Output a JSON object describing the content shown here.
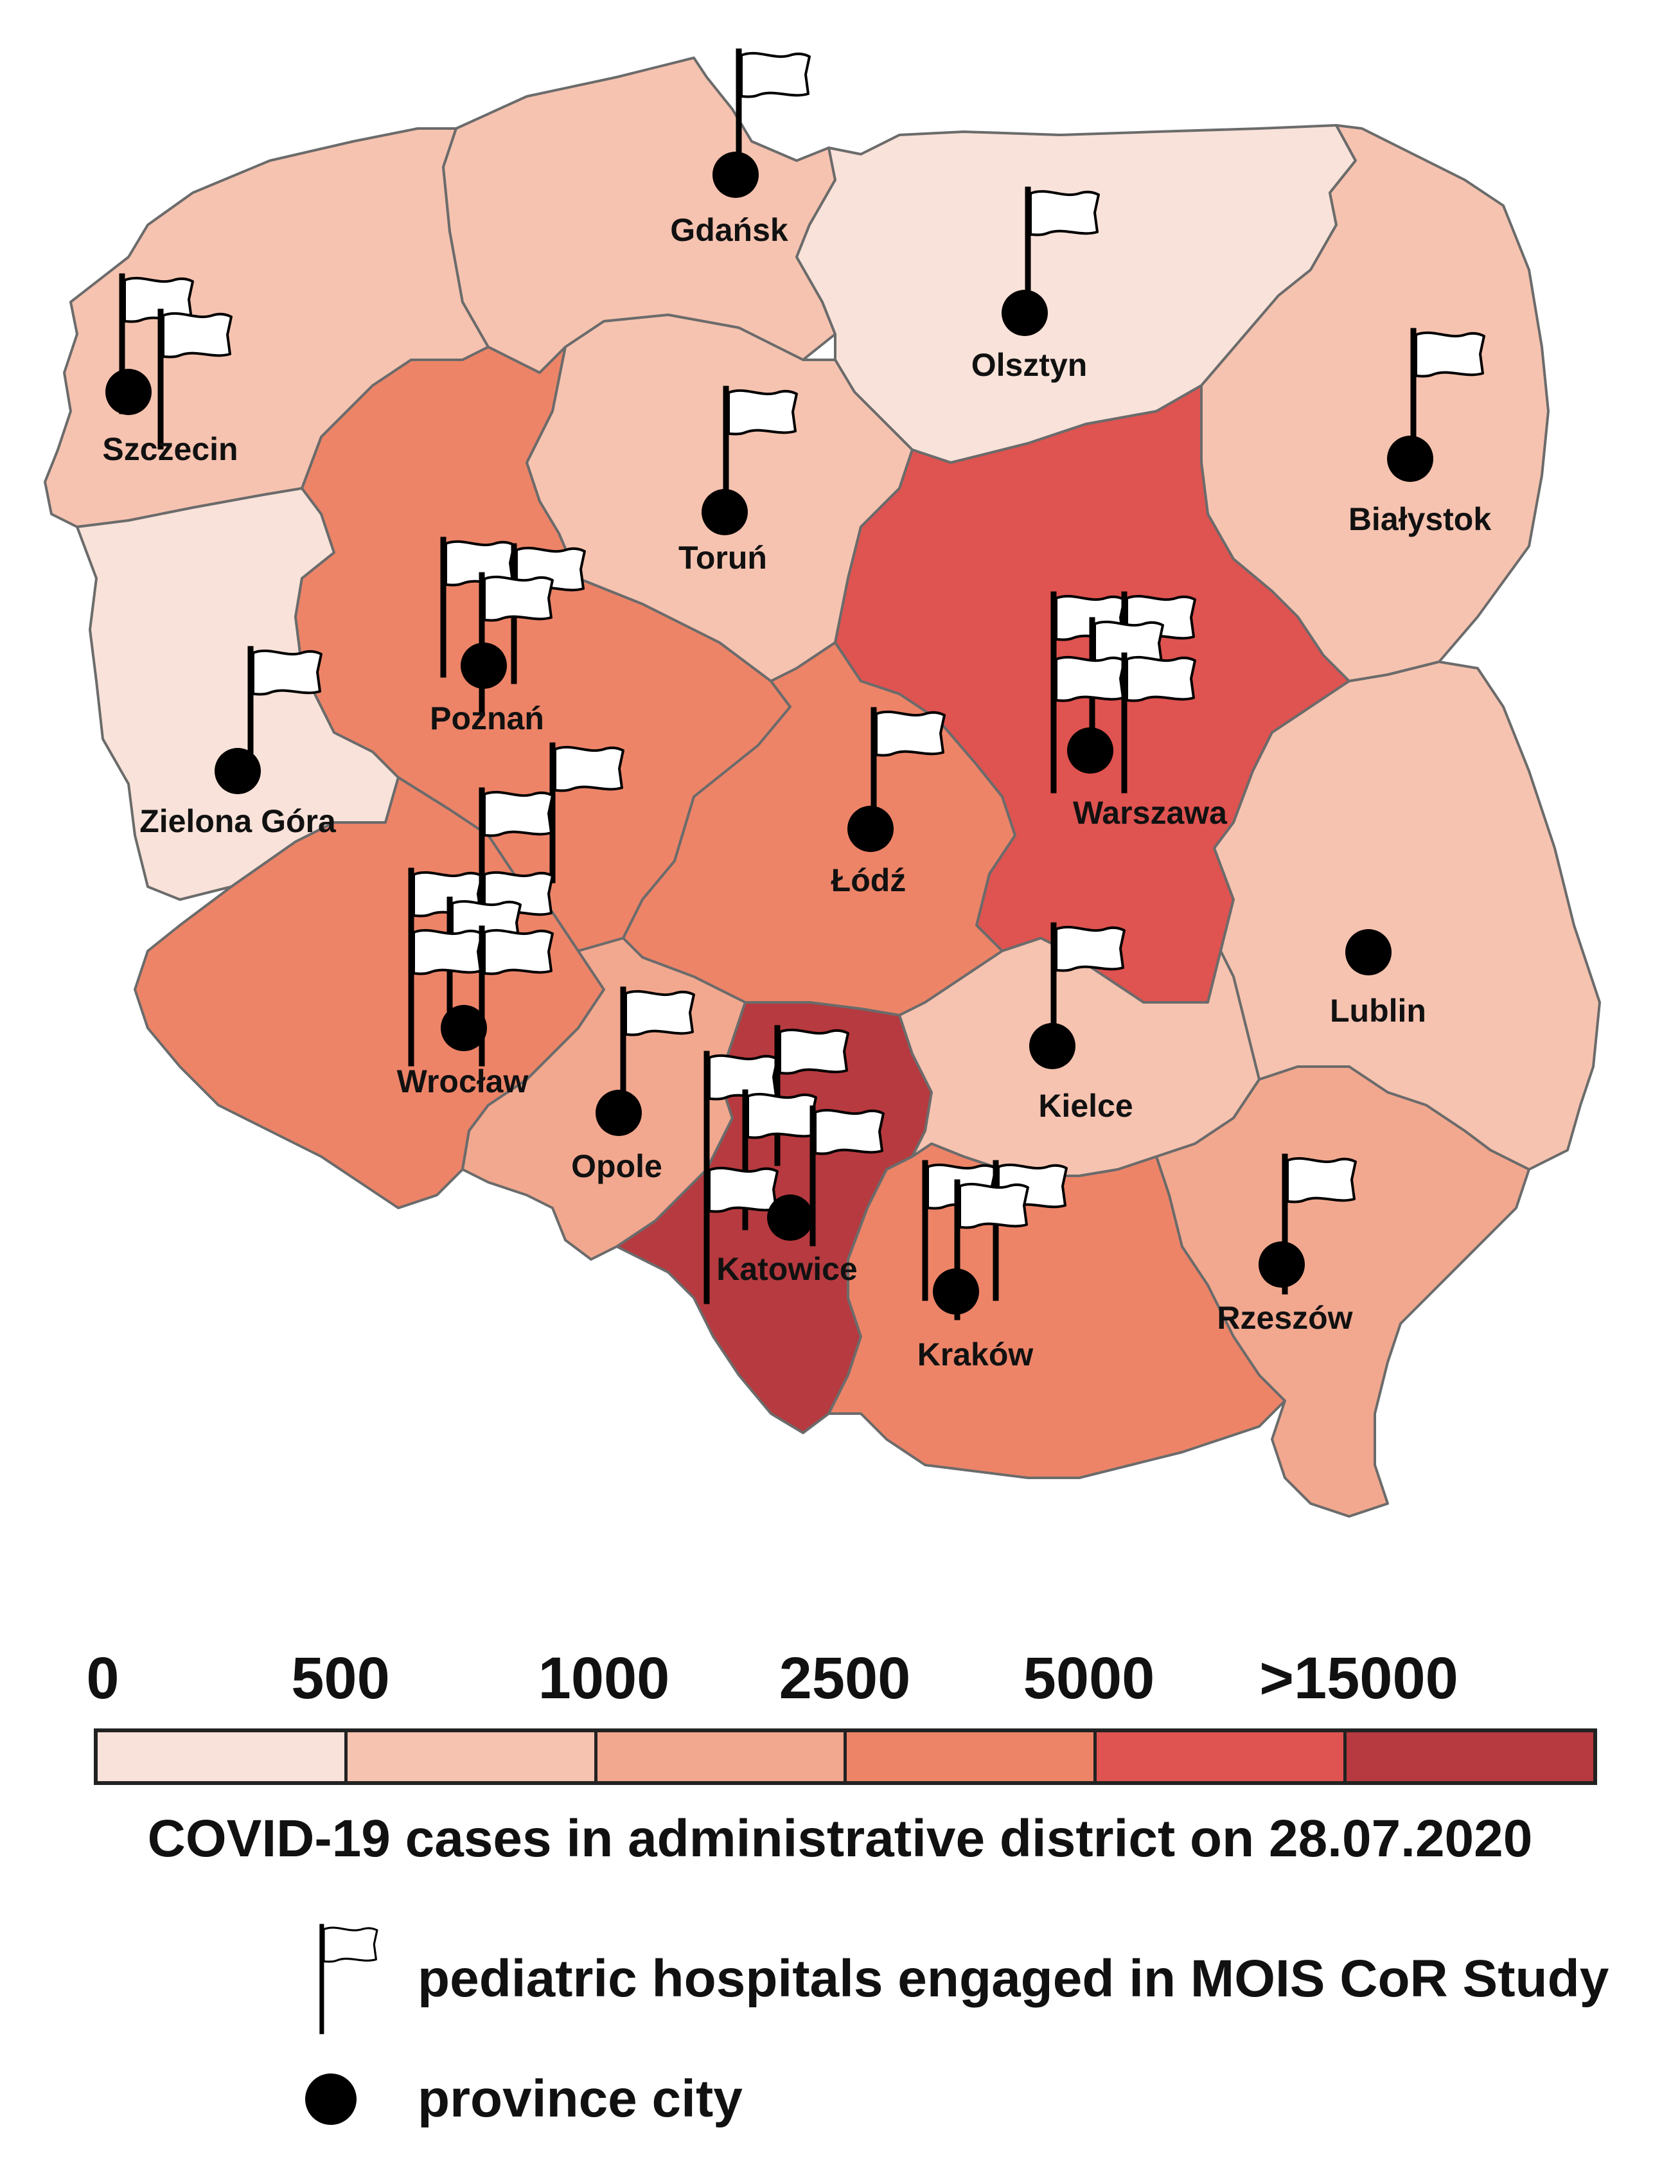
{
  "map": {
    "scale_colors": [
      "#f9e2d9",
      "#f6c3b0",
      "#f2a88f",
      "#ed8468",
      "#df5350",
      "#b63a3f"
    ],
    "regions": [
      {
        "name": "Zachodniopomorskie",
        "color": "#f6c3b0"
      },
      {
        "name": "Pomorskie",
        "color": "#f6c3b0"
      },
      {
        "name": "Warminsko-Mazurskie",
        "color": "#f9e2d9"
      },
      {
        "name": "Podlaskie",
        "color": "#f6c3b0"
      },
      {
        "name": "Lubuskie",
        "color": "#f9e2d9"
      },
      {
        "name": "Wielkopolskie",
        "color": "#ed8468"
      },
      {
        "name": "Kujawsko-Pomorskie",
        "color": "#f6c3b0"
      },
      {
        "name": "Mazowieckie",
        "color": "#df5350"
      },
      {
        "name": "Lodzkie",
        "color": "#ed8468"
      },
      {
        "name": "Lubelskie",
        "color": "#f6c3b0"
      },
      {
        "name": "Dolnoslaskie",
        "color": "#ed8468"
      },
      {
        "name": "Opolskie",
        "color": "#f2a88f"
      },
      {
        "name": "Slaskie",
        "color": "#b63a3f"
      },
      {
        "name": "Swietokrzyskie",
        "color": "#f6c3b0"
      },
      {
        "name": "Malopolskie",
        "color": "#ed8468"
      },
      {
        "name": "Podkarpackie",
        "color": "#f2a88f"
      }
    ],
    "cities": {
      "gdansk": "Gdańsk",
      "olsztyn": "Olsztyn",
      "szczecin": "Szczecin",
      "bialystok": "Białystok",
      "torun": "Toruń",
      "poznan": "Poznań",
      "zielona_gora": "Zielona Góra",
      "warszawa": "Warszawa",
      "lodz": "Łódź",
      "wroclaw": "Wrocław",
      "lublin": "Lublin",
      "kielce": "Kielce",
      "opole": "Opole",
      "katowice": "Katowice",
      "krakow": "Kraków",
      "rzeszow": "Rzeszów"
    }
  },
  "legend": {
    "scale_labels": [
      "0",
      "500",
      "1000",
      "2500",
      "5000",
      ">15000"
    ],
    "title": "COVID-19 cases in administrative district on 28.07.2020",
    "flag_label": "pediatric hospitals engaged in MOIS CoR Study",
    "dot_label": "province city",
    "flag_icon": "white-flag-icon",
    "dot_icon": "black-dot-icon"
  }
}
